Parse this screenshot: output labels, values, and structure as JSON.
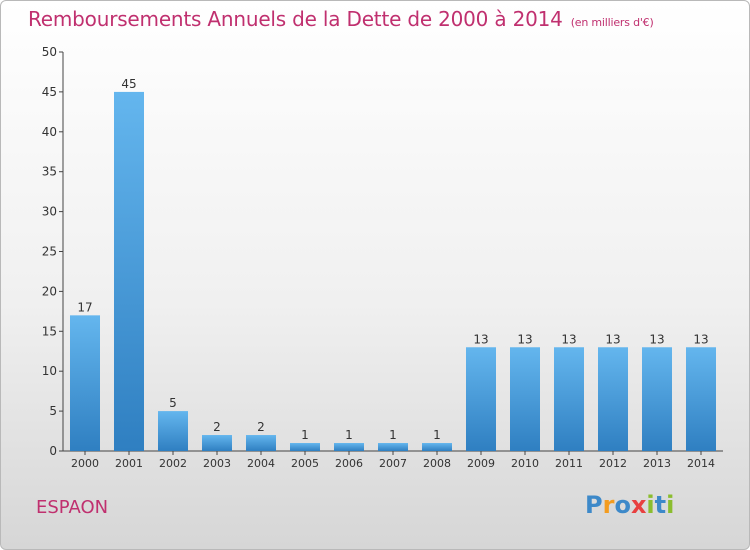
{
  "title": "Remboursements Annuels de la Dette de 2000 à 2014",
  "title_unit": "(en milliers d'€)",
  "commune": "ESPAON",
  "logo": {
    "letters": [
      "P",
      "r",
      "o",
      "x",
      "i",
      "t",
      "i"
    ],
    "colors": [
      "#3d89c9",
      "#f39c1f",
      "#3d89c9",
      "#e84040",
      "#8bbd2f",
      "#3d89c9",
      "#8bbd2f"
    ]
  },
  "chart_data": {
    "type": "bar",
    "categories": [
      "2000",
      "2001",
      "2002",
      "2003",
      "2004",
      "2005",
      "2006",
      "2007",
      "2008",
      "2009",
      "2010",
      "2011",
      "2012",
      "2013",
      "2014"
    ],
    "values": [
      17,
      45,
      5,
      2,
      2,
      1,
      1,
      1,
      1,
      13,
      13,
      13,
      13,
      13,
      13
    ],
    "ylim": [
      0,
      50
    ],
    "yticks": [
      0,
      5,
      10,
      15,
      20,
      25,
      30,
      35,
      40,
      45,
      50
    ],
    "grid": false,
    "bar_color": "#4ba3e3",
    "title_color": "#c0306f"
  }
}
